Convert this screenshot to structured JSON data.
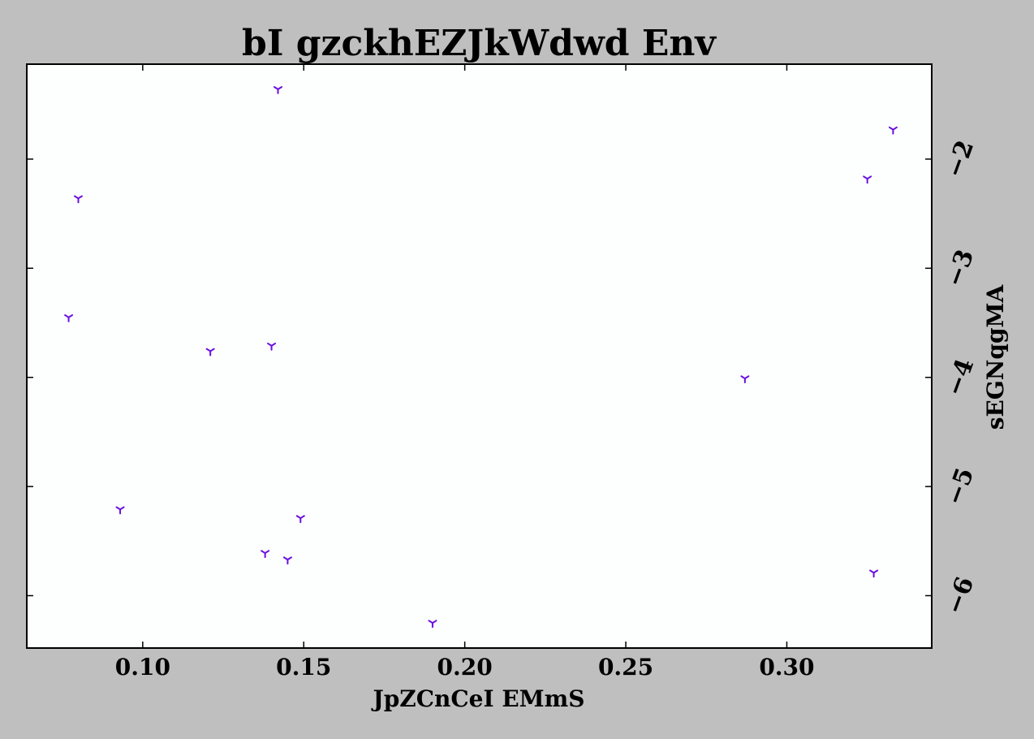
{
  "chart_data": {
    "type": "scatter",
    "title": "bI gzckhEZJkWdwd Env",
    "xlabel": "JpZCnCeI EMmS",
    "ylabel": "sEGNqgMA",
    "xlim": [
      0.064,
      0.345
    ],
    "ylim": [
      -6.48,
      -1.13
    ],
    "xticks": [
      0.1,
      0.15,
      0.2,
      0.25,
      0.3
    ],
    "xtick_labels": [
      "0.10",
      "0.15",
      "0.20",
      "0.25",
      "0.30"
    ],
    "yticks": [
      -2,
      -3,
      -4,
      -5,
      -6
    ],
    "ytick_labels": [
      "−2",
      "−3",
      "−4",
      "−5",
      "−6"
    ],
    "y_axis_side": "right",
    "grid": false,
    "marker": "tri_down",
    "color": "#6a0fe0",
    "points": [
      {
        "x": 0.142,
        "y": -1.36
      },
      {
        "x": 0.333,
        "y": -1.73
      },
      {
        "x": 0.325,
        "y": -2.18
      },
      {
        "x": 0.08,
        "y": -2.36
      },
      {
        "x": 0.077,
        "y": -3.45
      },
      {
        "x": 0.14,
        "y": -3.71
      },
      {
        "x": 0.121,
        "y": -3.76
      },
      {
        "x": 0.287,
        "y": -4.01
      },
      {
        "x": 0.093,
        "y": -5.21
      },
      {
        "x": 0.149,
        "y": -5.29
      },
      {
        "x": 0.138,
        "y": -5.61
      },
      {
        "x": 0.145,
        "y": -5.67
      },
      {
        "x": 0.327,
        "y": -5.79
      },
      {
        "x": 0.19,
        "y": -6.25
      }
    ]
  }
}
